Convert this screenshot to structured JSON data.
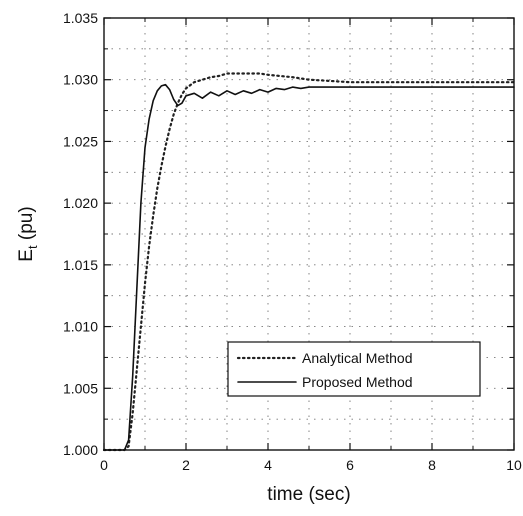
{
  "chart_data": {
    "type": "line",
    "xlabel": "time (sec)",
    "ylabel_main": "E",
    "ylabel_sub": "t",
    "ylabel_unit": " (pu)",
    "xlim": [
      0,
      10
    ],
    "ylim": [
      1.0,
      1.035
    ],
    "xticks": [
      0,
      2,
      4,
      6,
      8,
      10
    ],
    "xtick_labels": [
      "0",
      "2",
      "4",
      "6",
      "8",
      "10"
    ],
    "yticks": [
      1.0,
      1.005,
      1.01,
      1.015,
      1.02,
      1.025,
      1.03,
      1.035
    ],
    "ytick_labels": [
      "1.000",
      "1.005",
      "1.010",
      "1.015",
      "1.020",
      "1.025",
      "1.030",
      "1.035"
    ],
    "grid": true,
    "legend_position": "bottom-right",
    "series": [
      {
        "name": "Analytical Method",
        "style": "dotted",
        "color": "#222222",
        "x": [
          0,
          0.5,
          0.6,
          0.7,
          0.8,
          0.9,
          1.0,
          1.1,
          1.2,
          1.3,
          1.4,
          1.5,
          1.6,
          1.7,
          1.8,
          1.9,
          2.0,
          2.2,
          2.4,
          2.6,
          2.8,
          3.0,
          3.2,
          3.4,
          3.6,
          3.8,
          4.0,
          4.3,
          4.6,
          5.0,
          5.5,
          6.0,
          7.0,
          8.0,
          9.0,
          10.0
        ],
        "y": [
          1.0,
          1.0,
          1.0003,
          1.003,
          1.0065,
          1.01,
          1.0135,
          1.0165,
          1.019,
          1.0212,
          1.023,
          1.0246,
          1.026,
          1.0272,
          1.0281,
          1.0288,
          1.0293,
          1.0298,
          1.03,
          1.0302,
          1.0303,
          1.0305,
          1.0305,
          1.0305,
          1.0305,
          1.0305,
          1.0304,
          1.0303,
          1.0302,
          1.03,
          1.0299,
          1.0298,
          1.0298,
          1.0298,
          1.0298,
          1.0298
        ]
      },
      {
        "name": "Proposed Method",
        "style": "solid",
        "color": "#111111",
        "x": [
          0,
          0.5,
          0.6,
          0.7,
          0.8,
          0.9,
          1.0,
          1.1,
          1.2,
          1.3,
          1.4,
          1.5,
          1.6,
          1.7,
          1.8,
          1.9,
          2.0,
          2.2,
          2.4,
          2.6,
          2.8,
          3.0,
          3.2,
          3.4,
          3.6,
          3.8,
          4.0,
          4.2,
          4.4,
          4.6,
          4.8,
          5.0,
          5.5,
          6.0,
          7.0,
          8.0,
          9.0,
          10.0
        ],
        "y": [
          1.0,
          1.0,
          1.0008,
          1.006,
          1.013,
          1.02,
          1.0245,
          1.0268,
          1.0283,
          1.0291,
          1.0295,
          1.0296,
          1.0292,
          1.0284,
          1.0279,
          1.0281,
          1.0287,
          1.0289,
          1.0285,
          1.029,
          1.0287,
          1.0291,
          1.0288,
          1.0291,
          1.0289,
          1.0292,
          1.029,
          1.0293,
          1.0292,
          1.0294,
          1.0293,
          1.0294,
          1.0294,
          1.0294,
          1.0294,
          1.0294,
          1.0294,
          1.0294
        ]
      }
    ]
  }
}
